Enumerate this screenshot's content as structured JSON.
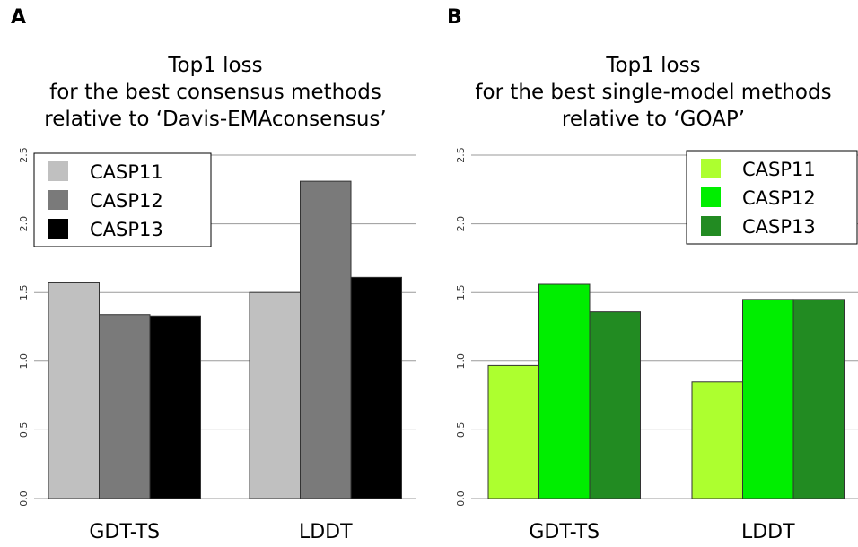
{
  "chart_data": [
    {
      "type": "bar",
      "panel_label": "A",
      "title_lines": [
        "Top1 loss",
        "for the best consensus methods",
        "relative to ‘Davis-EMAconsensus’"
      ],
      "categories": [
        "GDT-TS",
        "LDDT"
      ],
      "ylim": [
        0,
        2.5
      ],
      "yticks": [
        "0.0",
        "0.5",
        "1.0",
        "1.5",
        "2.0",
        "2.5"
      ],
      "grid": true,
      "legend_position": "top-left",
      "series": [
        {
          "name": "CASP11",
          "color": "#c0c0c0",
          "values": [
            1.57,
            1.5
          ]
        },
        {
          "name": "CASP12",
          "color": "#7a7a7a",
          "values": [
            1.34,
            2.31
          ]
        },
        {
          "name": "CASP13",
          "color": "#000000",
          "values": [
            1.33,
            1.61
          ]
        }
      ]
    },
    {
      "type": "bar",
      "panel_label": "B",
      "title_lines": [
        "Top1 loss",
        "for the best single-model methods",
        "relative to ‘GOAP’"
      ],
      "categories": [
        "GDT-TS",
        "LDDT"
      ],
      "ylim": [
        0,
        2.5
      ],
      "yticks": [
        "0.0",
        "0.5",
        "1.0",
        "1.5",
        "2.0",
        "2.5"
      ],
      "grid": true,
      "legend_position": "top-right",
      "series": [
        {
          "name": "CASP11",
          "color": "#adff2f",
          "values": [
            0.97,
            0.85
          ]
        },
        {
          "name": "CASP12",
          "color": "#00ee00",
          "values": [
            1.56,
            1.45
          ]
        },
        {
          "name": "CASP13",
          "color": "#228b22",
          "values": [
            1.36,
            1.45
          ]
        }
      ]
    }
  ]
}
